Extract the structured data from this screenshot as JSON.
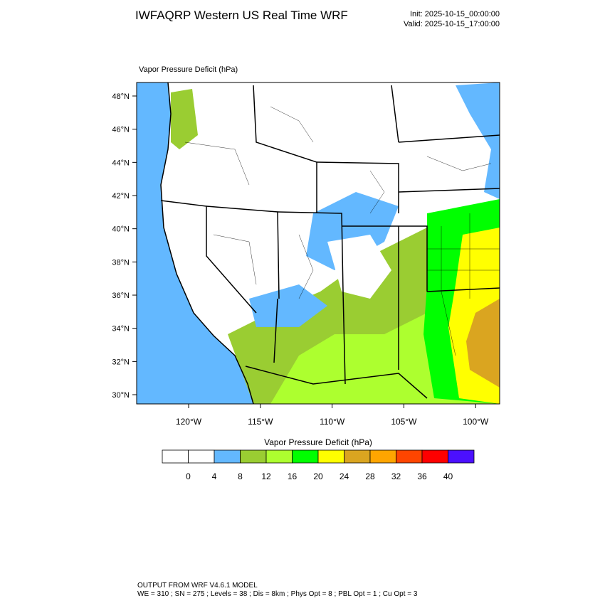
{
  "header": {
    "title": "IWFAQRP Western US Real Time WRF",
    "init": "Init: 2025-10-15_00:00:00",
    "valid": "Valid: 2025-10-15_17:00:00"
  },
  "map": {
    "label": "Vapor Pressure Deficit   (hPa)",
    "lat_labels": [
      "48°N",
      "46°N",
      "44°N",
      "42°N",
      "40°N",
      "38°N",
      "36°N",
      "34°N",
      "32°N",
      "30°N"
    ],
    "lon_labels": [
      "120°W",
      "115°W",
      "110°W",
      "105°W",
      "100°W"
    ]
  },
  "colorbar": {
    "title": "Vapor Pressure Deficit  (hPa)",
    "colors": [
      "#ffffff",
      "#ffffff",
      "#63b8ff",
      "#9acd32",
      "#adff2f",
      "#00ff00",
      "#ffff00",
      "#daa520",
      "#ffa500",
      "#ff4500",
      "#ff0000",
      "#4b10ff"
    ],
    "labels": [
      "0",
      "4",
      "8",
      "12",
      "16",
      "20",
      "24",
      "28",
      "32",
      "36",
      "40"
    ]
  },
  "footer": {
    "line1": "OUTPUT FROM WRF V4.6.1 MODEL",
    "line2": "WE = 310 ; SN = 275 ; Levels = 38 ; Dis = 8km ; Phys Opt = 8 ; PBL Opt = 1 ; Cu Opt = 3"
  }
}
